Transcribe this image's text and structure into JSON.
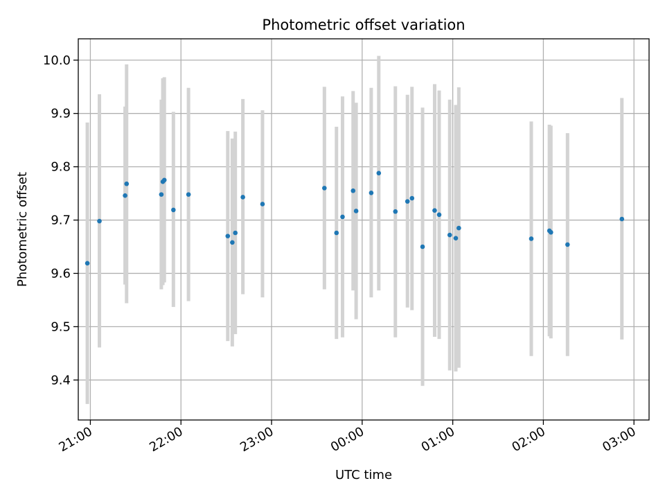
{
  "chart_data": {
    "type": "scatter",
    "title": "Photometric offset variation",
    "xlabel": "UTC time",
    "ylabel": "Photometric offset",
    "x_ticks": [
      "21:00",
      "22:00",
      "23:00",
      "00:00",
      "01:00",
      "02:00",
      "03:00"
    ],
    "y_ticks": [
      "9.4",
      "9.5",
      "9.6",
      "9.7",
      "9.8",
      "9.9",
      "10.0"
    ],
    "xlim": [
      "20:52",
      "03:10"
    ],
    "ylim": [
      9.325,
      10.04
    ],
    "grid": true,
    "legend": "none",
    "colors": {
      "point": "#1f77b4",
      "errorbar": "#d3d3d3",
      "grid": "#b0b0b0"
    },
    "points": [
      {
        "x": "20:58",
        "y": 9.619,
        "ylo": 9.355,
        "yhi": 9.883
      },
      {
        "x": "21:06",
        "y": 9.698,
        "ylo": 9.461,
        "yhi": 9.936
      },
      {
        "x": "21:23",
        "y": 9.746,
        "ylo": 9.579,
        "yhi": 9.913
      },
      {
        "x": "21:24",
        "y": 9.768,
        "ylo": 9.544,
        "yhi": 9.992
      },
      {
        "x": "21:47",
        "y": 9.748,
        "ylo": 9.57,
        "yhi": 9.926
      },
      {
        "x": "21:48",
        "y": 9.772,
        "ylo": 9.578,
        "yhi": 9.966
      },
      {
        "x": "21:49",
        "y": 9.775,
        "ylo": 9.583,
        "yhi": 9.968
      },
      {
        "x": "21:55",
        "y": 9.719,
        "ylo": 9.537,
        "yhi": 9.903
      },
      {
        "x": "22:05",
        "y": 9.748,
        "ylo": 9.548,
        "yhi": 9.948
      },
      {
        "x": "22:31",
        "y": 9.67,
        "ylo": 9.473,
        "yhi": 9.867
      },
      {
        "x": "22:34",
        "y": 9.658,
        "ylo": 9.463,
        "yhi": 9.853
      },
      {
        "x": "22:36",
        "y": 9.676,
        "ylo": 9.486,
        "yhi": 9.866
      },
      {
        "x": "22:41",
        "y": 9.743,
        "ylo": 9.561,
        "yhi": 9.927
      },
      {
        "x": "22:54",
        "y": 9.73,
        "ylo": 9.555,
        "yhi": 9.906
      },
      {
        "x": "23:35",
        "y": 9.76,
        "ylo": 9.57,
        "yhi": 9.95
      },
      {
        "x": "23:43",
        "y": 9.676,
        "ylo": 9.477,
        "yhi": 9.875
      },
      {
        "x": "23:47",
        "y": 9.706,
        "ylo": 9.48,
        "yhi": 9.932
      },
      {
        "x": "23:54",
        "y": 9.755,
        "ylo": 9.568,
        "yhi": 9.942
      },
      {
        "x": "23:56",
        "y": 9.717,
        "ylo": 9.514,
        "yhi": 9.92
      },
      {
        "x": "00:06",
        "y": 9.751,
        "ylo": 9.555,
        "yhi": 9.948
      },
      {
        "x": "00:11",
        "y": 9.788,
        "ylo": 9.568,
        "yhi": 10.008
      },
      {
        "x": "00:22",
        "y": 9.716,
        "ylo": 9.48,
        "yhi": 9.951
      },
      {
        "x": "00:30",
        "y": 9.735,
        "ylo": 9.536,
        "yhi": 9.935
      },
      {
        "x": "00:33",
        "y": 9.741,
        "ylo": 9.531,
        "yhi": 9.95
      },
      {
        "x": "00:40",
        "y": 9.65,
        "ylo": 9.389,
        "yhi": 9.911
      },
      {
        "x": "00:48",
        "y": 9.718,
        "ylo": 9.481,
        "yhi": 9.955
      },
      {
        "x": "00:51",
        "y": 9.71,
        "ylo": 9.477,
        "yhi": 9.943
      },
      {
        "x": "00:58",
        "y": 9.672,
        "ylo": 9.418,
        "yhi": 9.926
      },
      {
        "x": "01:02",
        "y": 9.666,
        "ylo": 9.416,
        "yhi": 9.916
      },
      {
        "x": "01:04",
        "y": 9.685,
        "ylo": 9.423,
        "yhi": 9.949
      },
      {
        "x": "01:52",
        "y": 9.665,
        "ylo": 9.445,
        "yhi": 9.885
      },
      {
        "x": "02:04",
        "y": 9.68,
        "ylo": 9.482,
        "yhi": 9.879
      },
      {
        "x": "02:05",
        "y": 9.677,
        "ylo": 9.478,
        "yhi": 9.877
      },
      {
        "x": "02:16",
        "y": 9.654,
        "ylo": 9.445,
        "yhi": 9.863
      },
      {
        "x": "02:52",
        "y": 9.702,
        "ylo": 9.476,
        "yhi": 9.929
      }
    ]
  }
}
